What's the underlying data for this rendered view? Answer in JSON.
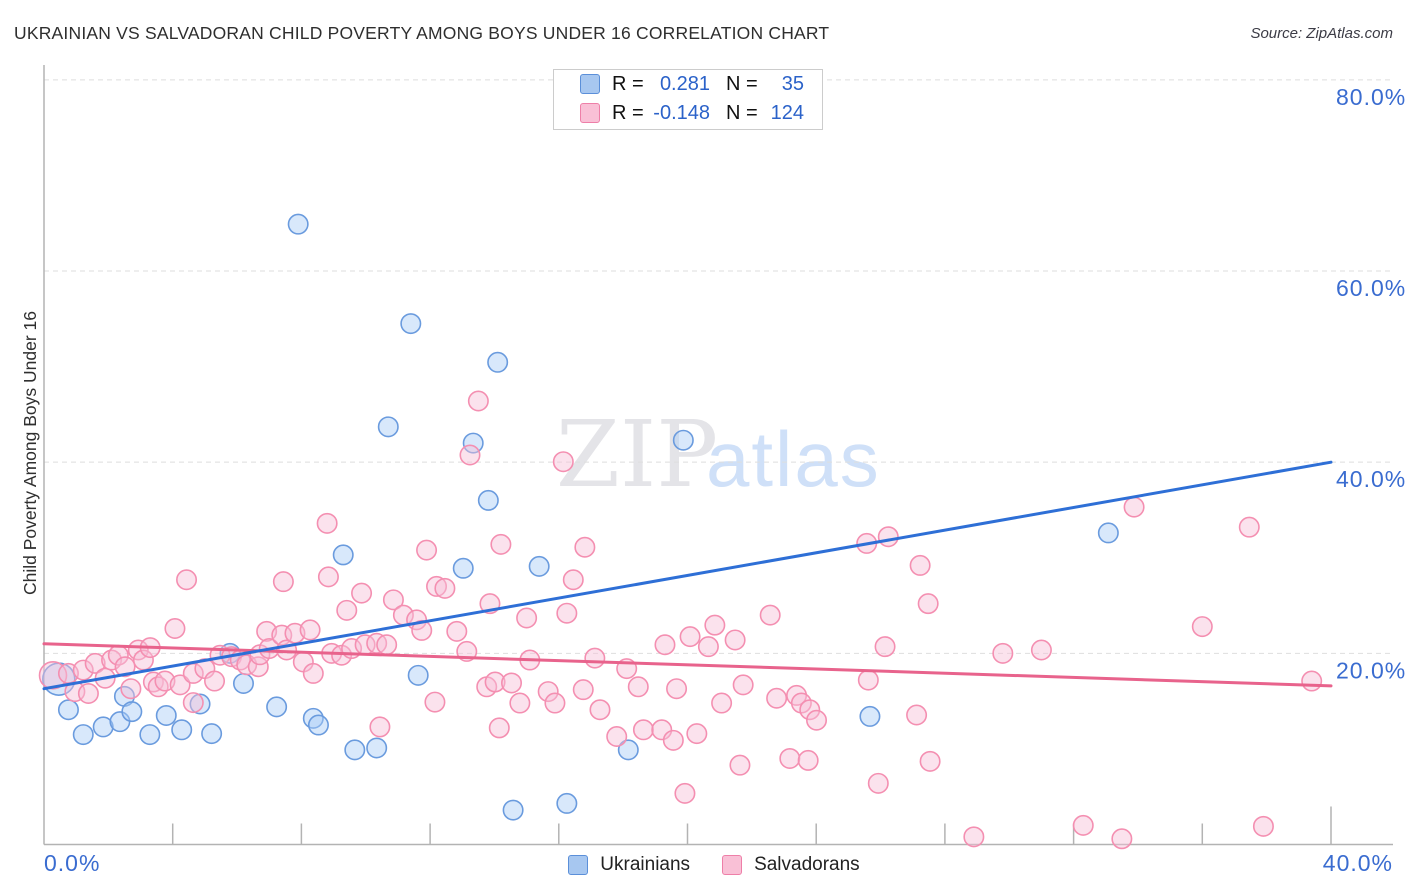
{
  "title": "UKRAINIAN VS SALVADORAN CHILD POVERTY AMONG BOYS UNDER 16 CORRELATION CHART",
  "source": "Source: ZipAtlas.com",
  "y_axis_label": "Child Poverty Among Boys Under 16",
  "watermark": {
    "zip": "ZIP",
    "atlas": "atlas"
  },
  "legend_box": {
    "rows": [
      {
        "series": "Ukrainians",
        "r_label": "R =",
        "r_value": "0.281",
        "n_label": "N =",
        "n_value": "35"
      },
      {
        "series": "Salvadorans",
        "r_label": "R =",
        "r_value": "-0.148",
        "n_label": "N =",
        "n_value": "124"
      }
    ]
  },
  "bottom_legend": [
    {
      "label": "Ukrainians"
    },
    {
      "label": "Salvadorans"
    }
  ],
  "axis": {
    "x_min_label": "0.0%",
    "x_max_label": "40.0%",
    "y_ticks": [
      {
        "value": 80,
        "label": "80.0%"
      },
      {
        "value": 60,
        "label": "60.0%"
      },
      {
        "value": 40,
        "label": "40.0%"
      },
      {
        "value": 20,
        "label": "20.0%"
      }
    ],
    "x_tick_values": [
      4,
      8,
      12,
      16,
      20,
      24,
      28,
      32,
      36,
      40
    ]
  },
  "chart_data": {
    "type": "scatter",
    "xlim": [
      0,
      41.9
    ],
    "ylim": [
      0,
      81.5
    ],
    "x_unit": "%",
    "y_unit": "%",
    "grid": "horizontal-dashed",
    "legend_position": "bottom-center",
    "series": [
      {
        "name": "Ukrainians",
        "R": 0.281,
        "N": 35,
        "stroke": "#6A9BDE",
        "fill": "#A9CCF6",
        "fill_opacity": 0.45,
        "marker_r": 9.7,
        "trend": {
          "x1": 0,
          "y1": 16.3,
          "x2": 40,
          "y2": 40.0,
          "color": "#2E6FD6"
        },
        "points": [
          [
            0.46,
            17.3,
            16
          ],
          [
            0.76,
            14.1
          ],
          [
            1.22,
            11.5
          ],
          [
            1.84,
            12.3
          ],
          [
            2.36,
            12.85
          ],
          [
            2.5,
            15.5
          ],
          [
            2.73,
            13.9
          ],
          [
            3.29,
            11.5
          ],
          [
            3.8,
            13.5
          ],
          [
            4.28,
            12.0
          ],
          [
            4.85,
            14.7
          ],
          [
            5.21,
            11.6
          ],
          [
            5.78,
            20.0
          ],
          [
            6.2,
            16.85
          ],
          [
            7.23,
            14.4
          ],
          [
            7.9,
            64.9
          ],
          [
            8.37,
            13.2
          ],
          [
            8.53,
            12.5
          ],
          [
            9.3,
            30.3
          ],
          [
            9.66,
            9.9
          ],
          [
            10.34,
            10.1
          ],
          [
            10.7,
            43.7
          ],
          [
            11.4,
            54.5
          ],
          [
            11.63,
            17.7
          ],
          [
            13.03,
            28.9
          ],
          [
            13.34,
            42.0
          ],
          [
            13.81,
            36.0
          ],
          [
            14.1,
            50.45
          ],
          [
            14.58,
            3.6
          ],
          [
            15.39,
            29.1
          ],
          [
            16.25,
            4.3
          ],
          [
            18.16,
            9.9
          ],
          [
            19.87,
            42.3
          ],
          [
            25.67,
            13.4
          ],
          [
            33.08,
            32.6
          ]
        ]
      },
      {
        "name": "Salvadorans",
        "R": -0.148,
        "N": 124,
        "stroke": "#F48FB1",
        "fill": "#F7BFD6",
        "fill_opacity": 0.45,
        "marker_r": 9.7,
        "trend": {
          "x1": 0,
          "y1": 21.0,
          "x2": 40,
          "y2": 16.6,
          "color": "#E8638C"
        },
        "points": [
          [
            0.28,
            17.7,
            13.5
          ],
          [
            0.76,
            17.9
          ],
          [
            0.96,
            16.0
          ],
          [
            1.22,
            18.25
          ],
          [
            1.38,
            15.8
          ],
          [
            1.59,
            18.95
          ],
          [
            1.9,
            17.4
          ],
          [
            2.1,
            19.3
          ],
          [
            2.31,
            19.8
          ],
          [
            2.52,
            18.6
          ],
          [
            2.7,
            16.3
          ],
          [
            2.93,
            20.35
          ],
          [
            3.09,
            19.3
          ],
          [
            3.3,
            20.6
          ],
          [
            3.4,
            17.0
          ],
          [
            3.55,
            16.5
          ],
          [
            3.76,
            17.1
          ],
          [
            4.07,
            22.6
          ],
          [
            4.23,
            16.7
          ],
          [
            4.43,
            27.7
          ],
          [
            4.64,
            17.9
          ],
          [
            4.64,
            14.85
          ],
          [
            5.0,
            18.4
          ],
          [
            5.3,
            17.1
          ],
          [
            5.47,
            19.8
          ],
          [
            5.83,
            19.65
          ],
          [
            6.1,
            19.3
          ],
          [
            6.3,
            18.8
          ],
          [
            6.66,
            18.6
          ],
          [
            6.71,
            19.85
          ],
          [
            6.92,
            22.3
          ],
          [
            7.0,
            20.5
          ],
          [
            7.39,
            21.9
          ],
          [
            7.44,
            27.5
          ],
          [
            7.54,
            20.35
          ],
          [
            7.8,
            22.1
          ],
          [
            8.06,
            19.1
          ],
          [
            8.27,
            22.45
          ],
          [
            8.37,
            17.9
          ],
          [
            8.8,
            33.6
          ],
          [
            8.84,
            28.0
          ],
          [
            8.94,
            20.0
          ],
          [
            9.25,
            19.8
          ],
          [
            9.41,
            24.5
          ],
          [
            9.56,
            20.5
          ],
          [
            9.87,
            26.3
          ],
          [
            9.98,
            20.9
          ],
          [
            10.34,
            21.05
          ],
          [
            10.44,
            12.3
          ],
          [
            10.65,
            20.9
          ],
          [
            10.86,
            25.6
          ],
          [
            11.17,
            24.0
          ],
          [
            11.58,
            23.5
          ],
          [
            11.74,
            22.4
          ],
          [
            11.89,
            30.8
          ],
          [
            12.15,
            14.9
          ],
          [
            12.2,
            27.0
          ],
          [
            12.46,
            26.8
          ],
          [
            12.83,
            22.3
          ],
          [
            13.14,
            20.2
          ],
          [
            13.24,
            40.75
          ],
          [
            13.5,
            46.4
          ],
          [
            13.76,
            16.5
          ],
          [
            13.86,
            25.2
          ],
          [
            14.02,
            17.0
          ],
          [
            14.15,
            12.2
          ],
          [
            14.2,
            31.4
          ],
          [
            14.53,
            16.9
          ],
          [
            14.79,
            14.8
          ],
          [
            15.0,
            23.7
          ],
          [
            15.1,
            19.3
          ],
          [
            15.67,
            16.0
          ],
          [
            15.88,
            14.8
          ],
          [
            16.14,
            40.05
          ],
          [
            16.25,
            24.2
          ],
          [
            16.45,
            27.7
          ],
          [
            16.76,
            16.2
          ],
          [
            16.81,
            31.1
          ],
          [
            17.12,
            19.5
          ],
          [
            17.28,
            14.1
          ],
          [
            17.8,
            11.3
          ],
          [
            18.11,
            18.4
          ],
          [
            18.47,
            16.5
          ],
          [
            18.63,
            12.0
          ],
          [
            19.2,
            12.0
          ],
          [
            19.3,
            20.9
          ],
          [
            19.56,
            10.9
          ],
          [
            19.66,
            16.3
          ],
          [
            19.92,
            5.35
          ],
          [
            20.08,
            21.75
          ],
          [
            20.29,
            11.6
          ],
          [
            20.65,
            20.7
          ],
          [
            20.85,
            22.95
          ],
          [
            21.06,
            14.8
          ],
          [
            21.48,
            21.4
          ],
          [
            21.63,
            8.3
          ],
          [
            21.73,
            16.7
          ],
          [
            22.57,
            24.0
          ],
          [
            22.77,
            15.3
          ],
          [
            23.18,
            9.0
          ],
          [
            23.39,
            15.6
          ],
          [
            23.54,
            14.8
          ],
          [
            23.75,
            8.8
          ],
          [
            23.8,
            14.1
          ],
          [
            24.01,
            13.0
          ],
          [
            25.57,
            31.5
          ],
          [
            25.62,
            17.2
          ],
          [
            25.93,
            6.4
          ],
          [
            26.14,
            20.7
          ],
          [
            26.24,
            32.2
          ],
          [
            27.12,
            13.55
          ],
          [
            27.23,
            29.2
          ],
          [
            27.48,
            25.2
          ],
          [
            27.54,
            8.7
          ],
          [
            28.9,
            0.8
          ],
          [
            29.8,
            20.0
          ],
          [
            31.0,
            20.35
          ],
          [
            32.3,
            2.0
          ],
          [
            33.5,
            0.6
          ],
          [
            33.88,
            35.3
          ],
          [
            36.0,
            22.8
          ],
          [
            37.46,
            33.2
          ],
          [
            37.9,
            1.9
          ],
          [
            39.4,
            17.1
          ]
        ]
      }
    ]
  }
}
